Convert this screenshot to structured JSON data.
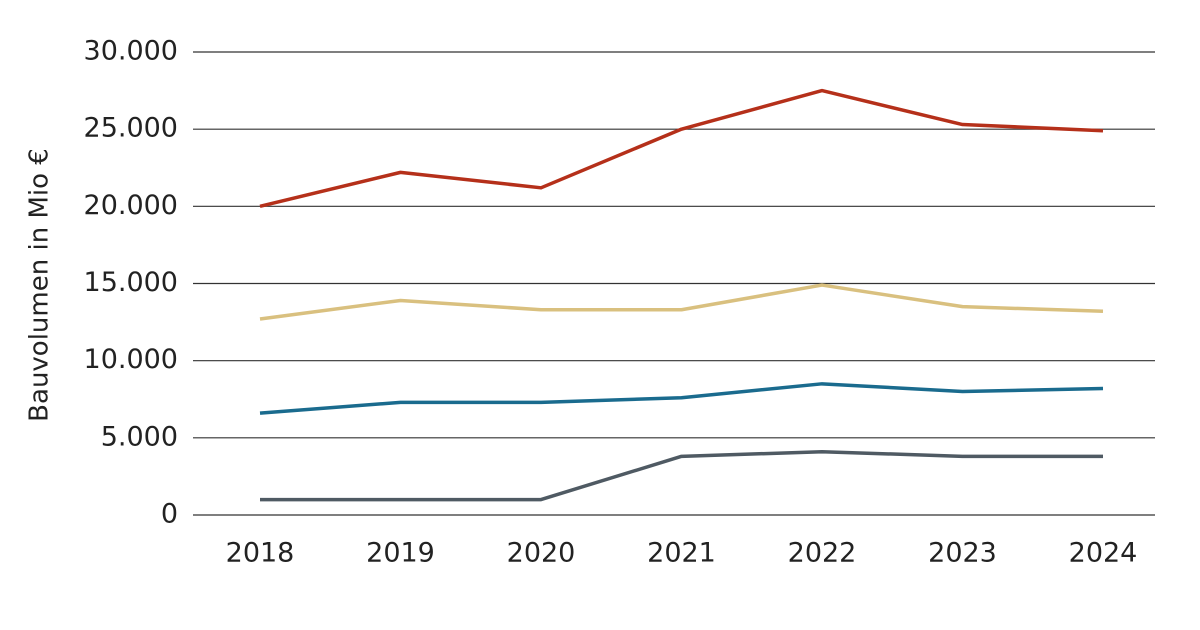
{
  "chart_data": {
    "type": "line",
    "y_label": "Bauvolumen in Mio €",
    "x": [
      "2018",
      "2019",
      "2020",
      "2021",
      "2022",
      "2023",
      "2024"
    ],
    "series": [
      {
        "color": "#b5301a",
        "values": [
          20000,
          22200,
          21200,
          25000,
          27500,
          25300,
          24900
        ]
      },
      {
        "color": "#d9c07f",
        "values": [
          12700,
          13900,
          13300,
          13300,
          14900,
          13500,
          13200
        ]
      },
      {
        "color": "#1a6b8e",
        "values": [
          6600,
          7300,
          7300,
          7600,
          8500,
          8000,
          8200
        ]
      },
      {
        "color": "#4f5a63",
        "values": [
          1000,
          1000,
          1000,
          3800,
          4100,
          3800,
          3800
        ]
      }
    ],
    "ylim": [
      0,
      30000
    ],
    "yticks": [
      0,
      {
        "value": 5000,
        "label": "5.000"
      },
      {
        "value": 10000,
        "label": "10.000"
      },
      {
        "value": 15000,
        "label": "15.000"
      },
      {
        "value": 20000,
        "label": "20.000"
      },
      {
        "value": 25000,
        "label": "25.000"
      },
      {
        "value": 30000,
        "label": "30.000"
      }
    ],
    "grid": true
  }
}
